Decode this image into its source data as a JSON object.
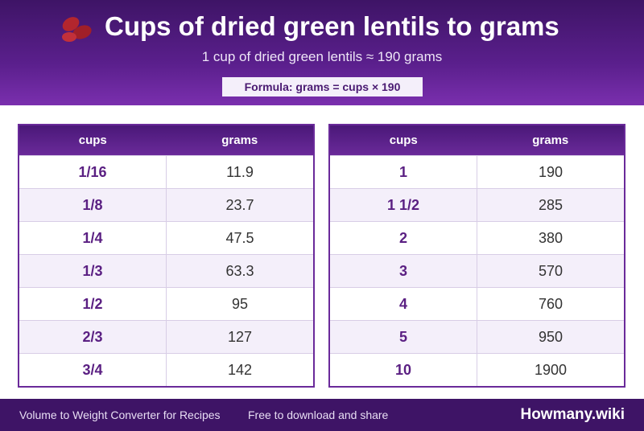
{
  "header": {
    "title": "Cups of dried green lentils to grams",
    "subtitle": "1 cup of dried green lentils ≈ 190 grams",
    "formula": "Formula: grams = cups × 190"
  },
  "tables": [
    {
      "columns": [
        "cups",
        "grams"
      ],
      "rows": [
        [
          "1/16",
          "11.9"
        ],
        [
          "1/8",
          "23.7"
        ],
        [
          "1/4",
          "47.5"
        ],
        [
          "1/3",
          "63.3"
        ],
        [
          "1/2",
          "95"
        ],
        [
          "2/3",
          "127"
        ],
        [
          "3/4",
          "142"
        ]
      ]
    },
    {
      "columns": [
        "cups",
        "grams"
      ],
      "rows": [
        [
          "1",
          "190"
        ],
        [
          "1 1/2",
          "285"
        ],
        [
          "2",
          "380"
        ],
        [
          "3",
          "570"
        ],
        [
          "4",
          "760"
        ],
        [
          "5",
          "950"
        ],
        [
          "10",
          "1900"
        ]
      ]
    }
  ],
  "footer": {
    "left": "Volume to Weight Converter for Recipes",
    "middle": "Free to download and share",
    "brand": "Howmany.wiki"
  }
}
